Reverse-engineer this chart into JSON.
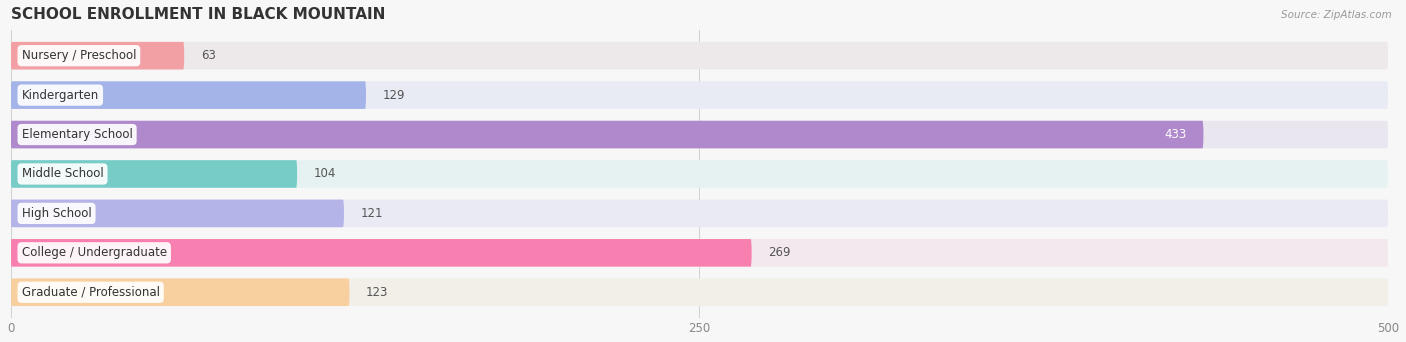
{
  "title": "SCHOOL ENROLLMENT IN BLACK MOUNTAIN",
  "source": "Source: ZipAtlas.com",
  "categories": [
    "Nursery / Preschool",
    "Kindergarten",
    "Elementary School",
    "Middle School",
    "High School",
    "College / Undergraduate",
    "Graduate / Professional"
  ],
  "values": [
    63,
    129,
    433,
    104,
    121,
    269,
    123
  ],
  "bar_colors": [
    "#f2a0a4",
    "#a4b4e8",
    "#b088cc",
    "#78ccc8",
    "#b4b4e8",
    "#f880b0",
    "#f8d0a0"
  ],
  "bar_bg_colors": [
    "#ede8ea",
    "#e8eaf4",
    "#eae6f0",
    "#e6f2f2",
    "#eaeaf4",
    "#f2e8ee",
    "#f2eee8"
  ],
  "xlim": [
    0,
    500
  ],
  "xticks": [
    0,
    250,
    500
  ],
  "bg_color": "#f7f7f7",
  "title_fontsize": 11,
  "label_fontsize": 8.5,
  "value_fontsize": 8.5,
  "bar_height": 0.7
}
